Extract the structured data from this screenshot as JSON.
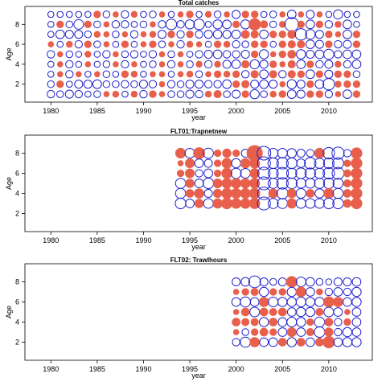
{
  "colors": {
    "positive": "#e8604c",
    "negative": "#1f1fcc"
  },
  "chart_data": [
    {
      "type": "scatter",
      "title": "Total catches",
      "xlabel": "year",
      "ylabel": "Age",
      "xlim": [
        1977.2,
        2014.7
      ],
      "ylim": [
        0.2,
        9.8
      ],
      "xticks": [
        1980,
        1985,
        1990,
        1995,
        2000,
        2005,
        2010
      ],
      "yticks": [
        2,
        4,
        6,
        8
      ],
      "grid": false,
      "years": [
        1980,
        1981,
        1982,
        1983,
        1984,
        1985,
        1986,
        1987,
        1988,
        1989,
        1990,
        1991,
        1992,
        1993,
        1994,
        1995,
        1996,
        1997,
        1998,
        1999,
        2000,
        2001,
        2002,
        2003,
        2004,
        2005,
        2006,
        2007,
        2008,
        2009,
        2010,
        2011,
        2012,
        2013
      ],
      "ages": [
        9,
        8,
        7,
        6,
        5,
        4,
        3,
        2,
        1
      ],
      "residuals": [
        [
          -0.2,
          -0.2,
          -0.2,
          -0.2,
          -0.2,
          0.3,
          -0.25,
          0.2,
          -0.3,
          0.25,
          -0.2,
          -0.25,
          0.2,
          -0.2,
          0.2,
          0.3,
          -0.2,
          0.25,
          -0.25,
          0.2,
          -0.35,
          0.3,
          0.3,
          -0.2,
          -0.25,
          0.2,
          -0.4,
          0.2,
          -0.35,
          0.2,
          -0.2,
          -0.45,
          -0.2,
          -0.2
        ],
        [
          -0.2,
          0.3,
          -0.25,
          -0.5,
          0.3,
          -0.25,
          0.2,
          -0.3,
          -0.3,
          -0.2,
          -0.25,
          0.2,
          -0.3,
          -0.6,
          -0.3,
          -0.45,
          -0.6,
          -0.2,
          -0.45,
          -0.4,
          0.3,
          -0.45,
          0.8,
          0.35,
          -0.25,
          0.25,
          -1.0,
          0.3,
          -0.4,
          0.3,
          -0.3,
          0.25,
          -0.4,
          -0.2
        ],
        [
          -0.2,
          -0.4,
          -0.35,
          -0.35,
          -0.25,
          0.25,
          0.2,
          -0.25,
          0.2,
          -0.3,
          0.2,
          0.25,
          -0.35,
          0.3,
          -0.3,
          0.3,
          -0.3,
          -0.35,
          -0.4,
          -0.35,
          -0.4,
          0.4,
          0.35,
          -0.4,
          0.3,
          0.3,
          0.4,
          -0.7,
          -0.5,
          -0.35,
          0.3,
          0.2,
          -0.4,
          0.3
        ],
        [
          0.2,
          -0.2,
          0.25,
          -0.3,
          0.3,
          -0.25,
          0.2,
          -0.2,
          0.3,
          -0.2,
          0.2,
          0.3,
          -0.25,
          0.2,
          -0.3,
          0.25,
          0.2,
          -0.2,
          0.3,
          0.25,
          -0.3,
          -0.25,
          0.3,
          0.3,
          -0.2,
          0.3,
          0.35,
          0.35,
          -0.4,
          -0.35,
          0.3,
          -0.3,
          -0.35,
          0.3
        ],
        [
          -0.3,
          0.2,
          -0.25,
          -0.2,
          0.25,
          -0.2,
          -0.3,
          0.2,
          -0.25,
          -0.3,
          -0.2,
          -0.3,
          0.2,
          -0.25,
          0.2,
          -0.2,
          -0.3,
          -0.35,
          -0.4,
          -0.3,
          -0.3,
          -0.35,
          0.3,
          -0.45,
          0.2,
          0.3,
          0.4,
          -0.45,
          -0.35,
          -0.4,
          -0.55,
          -0.3,
          -0.4,
          -0.4
        ],
        [
          -0.2,
          0.2,
          -0.3,
          -0.2,
          0.2,
          -0.2,
          -0.25,
          0.2,
          -0.3,
          0.2,
          -0.2,
          -0.25,
          0.2,
          -0.3,
          0.2,
          -0.25,
          0.25,
          -0.3,
          0.25,
          -0.35,
          -0.4,
          0.35,
          -0.45,
          -0.35,
          0.3,
          0.2,
          0.35,
          -0.4,
          0.3,
          -0.3,
          -0.35,
          0.25,
          -0.3,
          -0.4
        ],
        [
          -0.2,
          0.2,
          -0.3,
          0.2,
          -0.2,
          0.2,
          -0.25,
          -0.2,
          0.3,
          0.25,
          -0.2,
          0.2,
          0.2,
          -0.2,
          0.2,
          0.25,
          -0.25,
          0.2,
          0.3,
          0.25,
          0.3,
          -0.3,
          0.35,
          -0.4,
          0.35,
          -0.3,
          0.35,
          0.3,
          -0.4,
          0.3,
          -0.35,
          0.3,
          0.3,
          -0.25
        ],
        [
          -0.25,
          0.3,
          -0.2,
          -0.35,
          -0.35,
          -0.4,
          -0.25,
          -0.25,
          -0.3,
          -0.25,
          -0.35,
          -0.3,
          0.2,
          -0.3,
          -0.25,
          -0.35,
          -0.35,
          -0.3,
          -0.3,
          -0.4,
          0.3,
          0.35,
          -0.35,
          -0.4,
          -0.35,
          0.2,
          -0.45,
          -0.35,
          0.3,
          -0.4,
          -0.7,
          0.25,
          0.3,
          0.3
        ],
        [
          -0.3,
          -0.25,
          -0.35,
          -0.3,
          -0.2,
          -0.25,
          0.2,
          0.25,
          -0.2,
          0.25,
          -0.3,
          0.3,
          0.2,
          -0.25,
          -0.25,
          -0.35,
          -0.3,
          0.25,
          0.35,
          -0.25,
          -0.35,
          0.3,
          -0.45,
          -0.25,
          0.25,
          0.3,
          -0.4,
          -0.35,
          0.3,
          0.3,
          -0.3,
          0.2,
          -0.4,
          0.3
        ]
      ]
    },
    {
      "type": "scatter",
      "title": "FLT01:Trapnetnew",
      "xlabel": "year",
      "ylabel": "Age",
      "xlim": [
        1977.2,
        2014.7
      ],
      "ylim": [
        0.2,
        9.8
      ],
      "xticks": [
        1980,
        1985,
        1990,
        1995,
        2000,
        2005,
        2010
      ],
      "yticks": [
        2,
        4,
        6,
        8
      ],
      "grid": false,
      "years": [
        1994,
        1995,
        1996,
        1997,
        1998,
        1999,
        2000,
        2001,
        2002,
        2003,
        2004,
        2005,
        2006,
        2007,
        2008,
        2009,
        2010,
        2011,
        2012,
        2013
      ],
      "ages": [
        8,
        7,
        6,
        5,
        4,
        3
      ],
      "residuals": [
        [
          0.6,
          -0.5,
          0.75,
          -0.55,
          0.3,
          0.45,
          0.3,
          -0.35,
          1.4,
          -1.0,
          -0.5,
          -0.5,
          -0.45,
          -0.35,
          -0.3,
          0.6,
          -0.7,
          -0.8,
          -0.3,
          0.7
        ],
        [
          0.2,
          0.5,
          -0.4,
          -0.35,
          0.3,
          0.6,
          -0.45,
          0.55,
          0.6,
          -0.9,
          -0.6,
          -0.7,
          -0.6,
          -0.4,
          -0.7,
          -0.55,
          -0.6,
          -0.65,
          0.3,
          0.7
        ],
        [
          0.3,
          0.5,
          -0.3,
          -0.4,
          0.3,
          0.65,
          -0.55,
          -0.5,
          0.55,
          -0.8,
          -0.55,
          -0.75,
          -0.55,
          -0.6,
          -0.6,
          -0.55,
          -0.7,
          -0.75,
          0.35,
          0.7
        ],
        [
          -0.55,
          0.45,
          -0.4,
          -0.6,
          0.5,
          0.6,
          0.6,
          0.55,
          0.6,
          -0.9,
          -0.55,
          -0.7,
          -0.6,
          -0.5,
          -0.5,
          -0.55,
          -0.6,
          -0.55,
          0.35,
          0.7
        ],
        [
          -0.55,
          0.4,
          0.55,
          -0.35,
          0.45,
          0.65,
          0.6,
          0.6,
          0.65,
          -0.85,
          0.5,
          -0.65,
          0.5,
          -0.5,
          0.4,
          -0.45,
          0.6,
          -0.55,
          0.4,
          0.7
        ],
        [
          -0.6,
          -0.4,
          0.45,
          -0.5,
          0.55,
          0.7,
          0.6,
          0.6,
          0.65,
          -0.9,
          -0.55,
          -0.55,
          0.55,
          -0.5,
          -0.5,
          -0.5,
          -0.6,
          -0.6,
          0.4,
          0.7
        ]
      ]
    },
    {
      "type": "scatter",
      "title": "FLT02:      Trawlhours",
      "xlabel": "year",
      "ylabel": "Age",
      "xlim": [
        1977.2,
        2014.7
      ],
      "ylim": [
        0.2,
        9.8
      ],
      "xticks": [
        1980,
        1985,
        1990,
        1995,
        2000,
        2005,
        2010
      ],
      "yticks": [
        2,
        4,
        6,
        8
      ],
      "grid": false,
      "years": [
        2000,
        2001,
        2002,
        2003,
        2004,
        2005,
        2006,
        2007,
        2008,
        2009,
        2010,
        2011,
        2012,
        2013
      ],
      "ages": [
        8,
        7,
        6,
        5,
        4,
        3,
        2
      ],
      "residuals": [
        [
          -0.35,
          -0.4,
          -0.75,
          -0.35,
          -0.25,
          -0.35,
          0.7,
          -0.5,
          -0.4,
          -0.25,
          -0.2,
          -0.35,
          -0.35,
          -0.4
        ],
        [
          0.2,
          0.3,
          0.35,
          -0.45,
          0.3,
          0.3,
          -0.45,
          0.6,
          -0.4,
          0.25,
          -0.3,
          -0.4,
          -0.3,
          -0.45
        ],
        [
          -0.4,
          -0.55,
          -0.4,
          0.55,
          -0.5,
          -0.45,
          -0.45,
          -0.5,
          -0.45,
          -0.45,
          0.65,
          0.55,
          -0.4,
          -0.45
        ],
        [
          0.2,
          0.4,
          -0.5,
          0.4,
          0.35,
          0.4,
          -0.4,
          -0.45,
          -0.45,
          0.35,
          -0.5,
          -0.4,
          0.2,
          -0.4
        ],
        [
          0.4,
          0.35,
          0.35,
          -0.45,
          0.4,
          -0.4,
          -0.5,
          -0.45,
          0.3,
          -0.55,
          0.4,
          -0.3,
          0.3,
          -0.4
        ],
        [
          0.2,
          -0.25,
          0.3,
          0.4,
          0.3,
          -0.4,
          0.5,
          -0.4,
          0.35,
          -0.6,
          0.45,
          -0.3,
          -0.45,
          -0.4
        ],
        [
          -0.3,
          -0.55,
          0.55,
          -0.4,
          -0.4,
          0.4,
          -0.45,
          0.4,
          -0.4,
          0.4,
          0.8,
          -0.4,
          -0.45,
          -0.45
        ]
      ]
    }
  ]
}
